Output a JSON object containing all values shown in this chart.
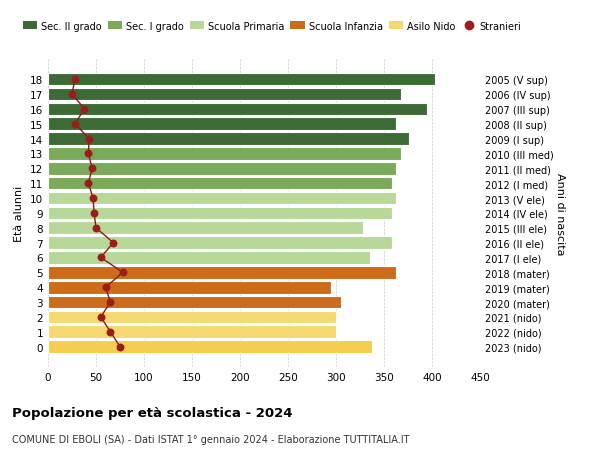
{
  "ages": [
    18,
    17,
    16,
    15,
    14,
    13,
    12,
    11,
    10,
    9,
    8,
    7,
    6,
    5,
    4,
    3,
    2,
    1,
    0
  ],
  "right_labels": [
    "2005 (V sup)",
    "2006 (IV sup)",
    "2007 (III sup)",
    "2008 (II sup)",
    "2009 (I sup)",
    "2010 (III med)",
    "2011 (II med)",
    "2012 (I med)",
    "2013 (V ele)",
    "2014 (IV ele)",
    "2015 (III ele)",
    "2016 (II ele)",
    "2017 (I ele)",
    "2018 (mater)",
    "2019 (mater)",
    "2020 (mater)",
    "2021 (nido)",
    "2022 (nido)",
    "2023 (nido)"
  ],
  "bar_values": [
    403,
    368,
    395,
    363,
    376,
    368,
    362,
    358,
    362,
    358,
    328,
    358,
    335,
    363,
    295,
    305,
    300,
    300,
    338
  ],
  "bar_colors": [
    "#3d6b35",
    "#3d6b35",
    "#3d6b35",
    "#3d6b35",
    "#3d6b35",
    "#7aaa5a",
    "#7aaa5a",
    "#7aaa5a",
    "#b8d89a",
    "#b8d89a",
    "#b8d89a",
    "#b8d89a",
    "#b8d89a",
    "#cc6b1a",
    "#cc6b1a",
    "#cc6b1a",
    "#f5d870",
    "#f5d870",
    "#f5ce50"
  ],
  "stranieri_values": [
    28,
    25,
    38,
    28,
    43,
    42,
    46,
    42,
    47,
    48,
    50,
    68,
    55,
    78,
    60,
    65,
    55,
    65,
    75
  ],
  "legend_labels": [
    "Sec. II grado",
    "Sec. I grado",
    "Scuola Primaria",
    "Scuola Infanzia",
    "Asilo Nido",
    "Stranieri"
  ],
  "legend_colors": [
    "#3d6b35",
    "#7aaa5a",
    "#b8d89a",
    "#cc6b1a",
    "#f5d870",
    "#9b1c1c"
  ],
  "ylabel": "Età alunni",
  "right_ylabel": "Anni di nascita",
  "title": "Popolazione per età scolastica - 2024",
  "subtitle": "COMUNE DI EBOLI (SA) - Dati ISTAT 1° gennaio 2024 - Elaborazione TUTTITALIA.IT",
  "xlim": [
    0,
    450
  ],
  "xticks": [
    0,
    50,
    100,
    150,
    200,
    250,
    300,
    350,
    400,
    450
  ],
  "background_color": "#ffffff",
  "grid_color": "#cccccc",
  "bar_edgecolor": "#ffffff",
  "stranieri_line_color": "#8b1a1a",
  "stranieri_marker_color": "#9b1c1c"
}
